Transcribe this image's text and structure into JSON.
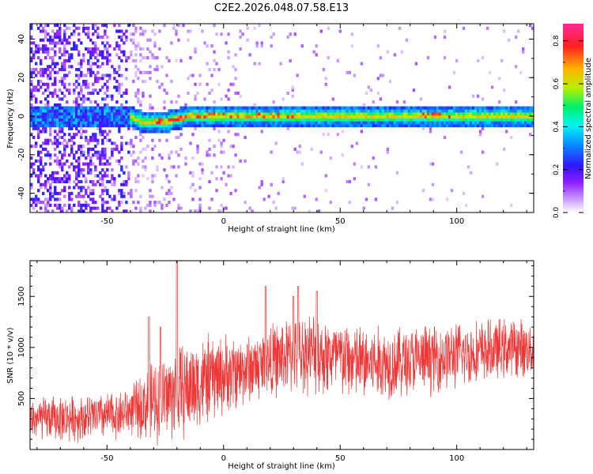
{
  "title": "C2E2.2026.048.07.58.E13",
  "chart_data": [
    {
      "type": "heatmap",
      "name": "spectrogram",
      "xlabel": "Height of straight line (km)",
      "ylabel": "Frequency (Hz)",
      "xlim": [
        -83,
        133
      ],
      "ylim": [
        -50,
        48
      ],
      "xticks": [
        -50,
        0,
        50,
        100
      ],
      "yticks": [
        -40,
        -20,
        0,
        20,
        40
      ],
      "colorbar": {
        "label": "Normalized spectral amplitude",
        "range": [
          0.0,
          0.88
        ],
        "ticks": [
          0.0,
          0.2,
          0.4,
          0.6,
          0.8
        ]
      },
      "signal_band": {
        "description": "Narrow high-amplitude band centred near 0 Hz",
        "center_frequency_hz": [
          {
            "x": -83,
            "f": 0
          },
          {
            "x": -40,
            "f": 0
          },
          {
            "x": -35,
            "f": -3
          },
          {
            "x": -25,
            "f": -3
          },
          {
            "x": -15,
            "f": 0
          },
          {
            "x": 133,
            "f": 0
          }
        ],
        "peak_amplitude_regions": [
          {
            "x_range": [
              -30,
              30
            ],
            "amplitude": 0.8
          },
          {
            "x_range": [
              85,
              100
            ],
            "amplitude": 0.85
          }
        ]
      }
    },
    {
      "type": "line",
      "name": "snr",
      "xlabel": "Height of straight line (km)",
      "ylabel": "SNR (10 * v/v)",
      "xlim": [
        -83,
        133
      ],
      "ylim": [
        0,
        1850
      ],
      "xticks": [
        -50,
        0,
        50,
        100
      ],
      "yticks": [
        500,
        1000,
        1500
      ],
      "color": "#f03535",
      "trend": [
        {
          "x": -83,
          "y": 300
        },
        {
          "x": -60,
          "y": 310
        },
        {
          "x": -45,
          "y": 340
        },
        {
          "x": -35,
          "y": 420
        },
        {
          "x": -25,
          "y": 520
        },
        {
          "x": -15,
          "y": 600
        },
        {
          "x": -5,
          "y": 700
        },
        {
          "x": 5,
          "y": 760
        },
        {
          "x": 15,
          "y": 820
        },
        {
          "x": 25,
          "y": 900
        },
        {
          "x": 35,
          "y": 960
        },
        {
          "x": 45,
          "y": 920
        },
        {
          "x": 55,
          "y": 860
        },
        {
          "x": 65,
          "y": 840
        },
        {
          "x": 75,
          "y": 860
        },
        {
          "x": 85,
          "y": 880
        },
        {
          "x": 95,
          "y": 910
        },
        {
          "x": 105,
          "y": 940
        },
        {
          "x": 115,
          "y": 970
        },
        {
          "x": 125,
          "y": 1000
        },
        {
          "x": 133,
          "y": 980
        }
      ],
      "noise_amplitude": [
        {
          "x": -83,
          "a": 200
        },
        {
          "x": -40,
          "a": 220
        },
        {
          "x": -30,
          "a": 380
        },
        {
          "x": -15,
          "a": 450
        },
        {
          "x": 10,
          "a": 320
        },
        {
          "x": 40,
          "a": 380
        },
        {
          "x": 133,
          "a": 260
        }
      ],
      "spikes": [
        {
          "x": -20,
          "y": 1850
        },
        {
          "x": -32,
          "y": 1300
        },
        {
          "x": -27,
          "y": 1200
        },
        {
          "x": 18,
          "y": 1600
        },
        {
          "x": 32,
          "y": 1600
        },
        {
          "x": 40,
          "y": 1550
        },
        {
          "x": 30,
          "y": 1500
        }
      ]
    }
  ]
}
